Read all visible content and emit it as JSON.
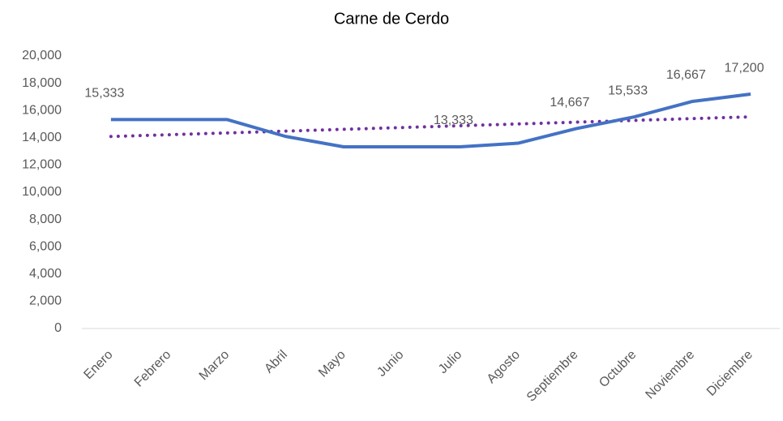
{
  "chart_data": {
    "type": "line",
    "title": "Carne de Cerdo",
    "categories": [
      "Enero",
      "Febrero",
      "Marzo",
      "Abril",
      "Mayo",
      "Junio",
      "Julio",
      "Agosto",
      "Septiembre",
      "Octubre",
      "Noviembre",
      "Diciembre"
    ],
    "values": [
      15333,
      15333,
      15333,
      14100,
      13333,
      13333,
      13333,
      13600,
      14667,
      15533,
      16667,
      17200
    ],
    "value_labels": [
      "15,333",
      null,
      null,
      null,
      null,
      null,
      "13,333",
      null,
      "14,667",
      "15,533",
      "16,667",
      "17,200"
    ],
    "color": "#4472c4",
    "trendline": {
      "values": [
        14091,
        14222,
        14354,
        14485,
        14617,
        14748,
        14879,
        15011,
        15142,
        15274,
        15405,
        15536
      ],
      "color": "#7030a0"
    },
    "ylim": [
      0,
      20000
    ],
    "yticks": [
      0,
      {
        "value": 2000,
        "label": "2,000"
      },
      {
        "value": 4000,
        "label": "4,000"
      },
      {
        "value": 6000,
        "label": "6,000"
      },
      {
        "value": 8000,
        "label": "8,000"
      },
      {
        "value": 10000,
        "label": "10,000"
      },
      {
        "value": 12000,
        "label": "12,000"
      },
      {
        "value": 14000,
        "label": "14,000"
      },
      {
        "value": 16000,
        "label": "16,000"
      },
      {
        "value": 18000,
        "label": "18,000"
      },
      {
        "value": 20000,
        "label": "20,000"
      }
    ],
    "grid": false
  }
}
